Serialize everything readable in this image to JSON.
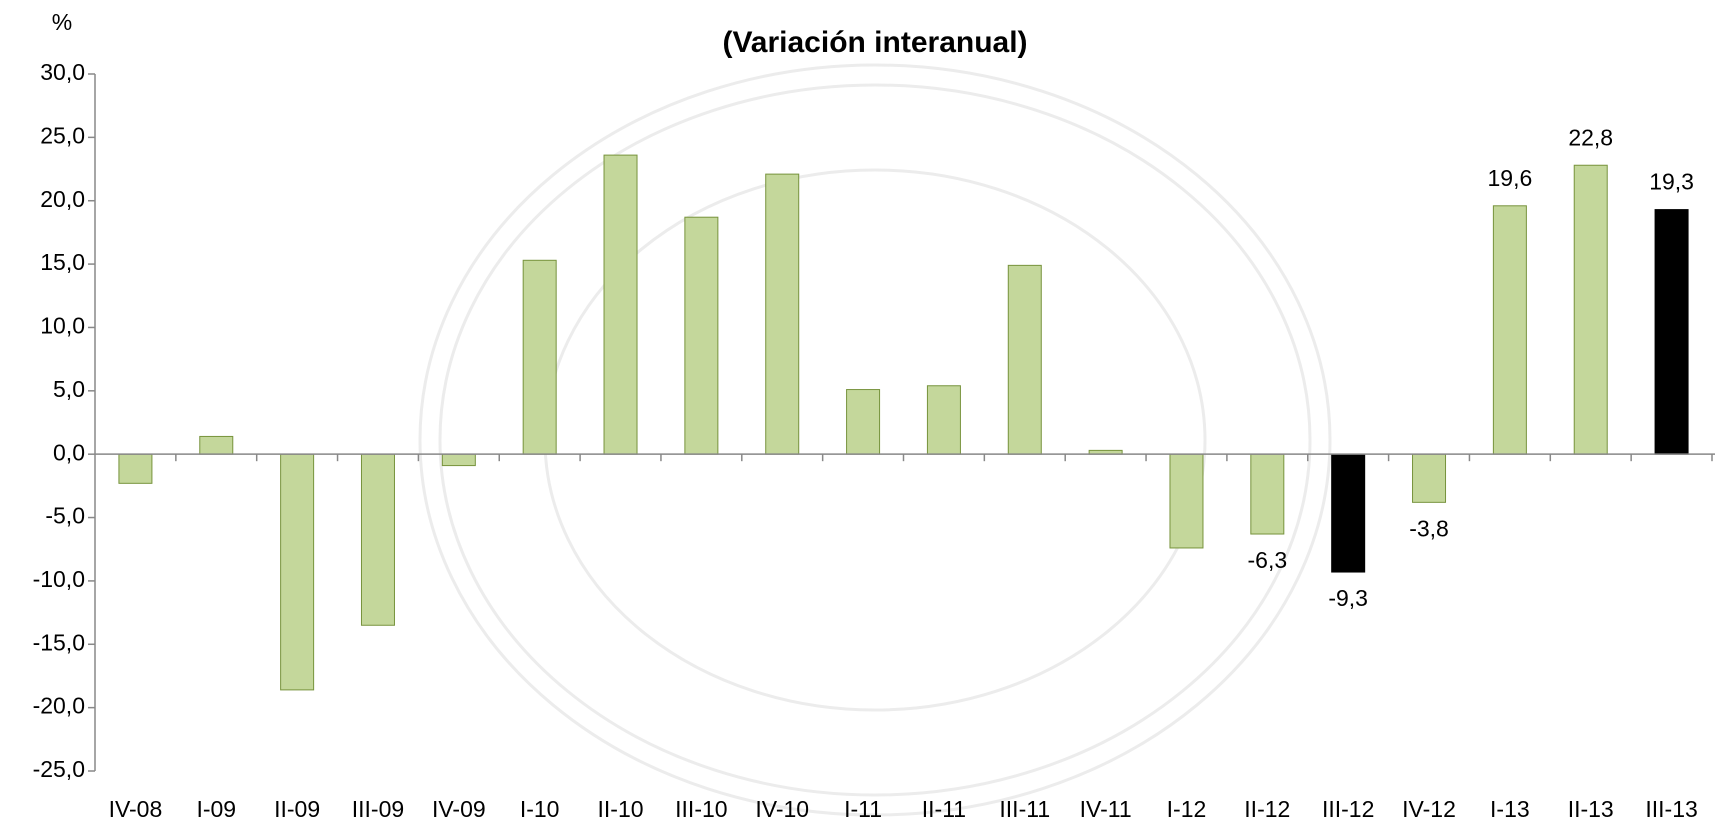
{
  "chart_data": {
    "type": "bar",
    "title": "(Variación interanual)",
    "y_label": "%",
    "categories": [
      "IV-08",
      "I-09",
      "II-09",
      "III-09",
      "IV-09",
      "I-10",
      "II-10",
      "III-10",
      "IV-10",
      "I-11",
      "II-11",
      "III-11",
      "IV-11",
      "I-12",
      "II-12",
      "III-12",
      "IV-12",
      "I-13",
      "II-13",
      "III-13"
    ],
    "values": [
      -2.3,
      1.4,
      -18.6,
      -13.5,
      -0.9,
      15.3,
      23.6,
      18.7,
      22.1,
      5.1,
      5.4,
      14.9,
      0.3,
      -7.4,
      -6.3,
      -9.3,
      -3.8,
      19.6,
      22.8,
      19.3
    ],
    "value_labels": [
      null,
      null,
      null,
      null,
      null,
      null,
      null,
      null,
      null,
      null,
      null,
      null,
      null,
      null,
      "-6,3",
      "-9,3",
      "-3,8",
      "19,6",
      "22,8",
      "19,3"
    ],
    "colors": [
      "#c4d79b",
      "#c4d79b",
      "#c4d79b",
      "#c4d79b",
      "#c4d79b",
      "#c4d79b",
      "#c4d79b",
      "#c4d79b",
      "#c4d79b",
      "#c4d79b",
      "#c4d79b",
      "#c4d79b",
      "#c4d79b",
      "#c4d79b",
      "#c4d79b",
      "#000000",
      "#c4d79b",
      "#c4d79b",
      "#c4d79b",
      "#000000"
    ],
    "edge_color": "#77933c",
    "ylim": [
      -25,
      30
    ],
    "yticks": [
      {
        "value": -25,
        "label": "-25,0"
      },
      {
        "value": -20,
        "label": "-20,0"
      },
      {
        "value": -15,
        "label": "-15,0"
      },
      {
        "value": -10,
        "label": "-10,0"
      },
      {
        "value": -5,
        "label": "-5,0"
      },
      {
        "value": 0,
        "label": "0,0"
      },
      {
        "value": 5,
        "label": "5,0"
      },
      {
        "value": 10,
        "label": "10,0"
      },
      {
        "value": 15,
        "label": "15,0"
      },
      {
        "value": 20,
        "label": "20,0"
      },
      {
        "value": 25,
        "label": "25,0"
      },
      {
        "value": 30,
        "label": "30,0"
      }
    ],
    "grid": false
  }
}
